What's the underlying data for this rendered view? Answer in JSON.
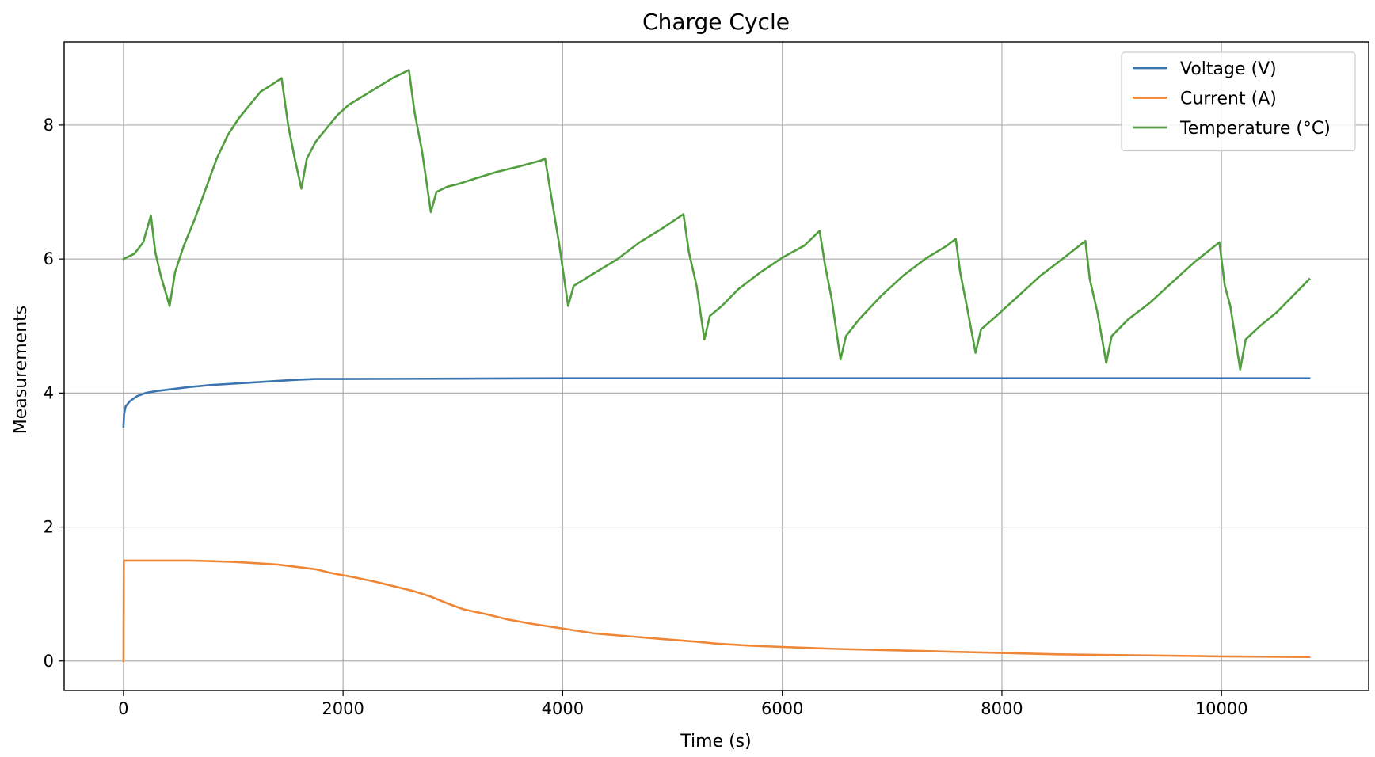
{
  "chart_data": {
    "type": "line",
    "title": "Charge Cycle",
    "xlabel": "Time (s)",
    "ylabel": "Measurements",
    "xlim": [
      -540,
      11340
    ],
    "ylim": [
      -0.44,
      9.24
    ],
    "xticks": [
      0,
      2000,
      4000,
      6000,
      8000,
      10000
    ],
    "yticks": [
      0,
      2,
      4,
      6,
      8
    ],
    "grid": true,
    "legend_position": "top-right",
    "series": [
      {
        "name": "Voltage (V)",
        "color": "#3b75af",
        "points": [
          [
            0,
            3.5
          ],
          [
            5,
            3.68
          ],
          [
            20,
            3.8
          ],
          [
            60,
            3.88
          ],
          [
            120,
            3.95
          ],
          [
            200,
            4.0
          ],
          [
            300,
            4.03
          ],
          [
            450,
            4.06
          ],
          [
            600,
            4.09
          ],
          [
            800,
            4.12
          ],
          [
            1000,
            4.14
          ],
          [
            1200,
            4.16
          ],
          [
            1400,
            4.18
          ],
          [
            1600,
            4.2
          ],
          [
            1750,
            4.21
          ],
          [
            2000,
            4.21
          ],
          [
            3000,
            4.215
          ],
          [
            4000,
            4.22
          ],
          [
            5000,
            4.22
          ],
          [
            6000,
            4.22
          ],
          [
            7000,
            4.22
          ],
          [
            8000,
            4.22
          ],
          [
            9000,
            4.22
          ],
          [
            10000,
            4.22
          ],
          [
            10800,
            4.22
          ]
        ]
      },
      {
        "name": "Current (A)",
        "color": "#ef8636",
        "points": [
          [
            0,
            0
          ],
          [
            3,
            1.5
          ],
          [
            200,
            1.5
          ],
          [
            400,
            1.5
          ],
          [
            600,
            1.5
          ],
          [
            800,
            1.49
          ],
          [
            1000,
            1.48
          ],
          [
            1200,
            1.46
          ],
          [
            1400,
            1.44
          ],
          [
            1600,
            1.4
          ],
          [
            1750,
            1.37
          ],
          [
            1900,
            1.31
          ],
          [
            2100,
            1.25
          ],
          [
            2300,
            1.18
          ],
          [
            2500,
            1.1
          ],
          [
            2650,
            1.04
          ],
          [
            2800,
            0.96
          ],
          [
            2950,
            0.86
          ],
          [
            3100,
            0.77
          ],
          [
            3300,
            0.7
          ],
          [
            3500,
            0.62
          ],
          [
            3700,
            0.56
          ],
          [
            3900,
            0.51
          ],
          [
            4100,
            0.46
          ],
          [
            4300,
            0.41
          ],
          [
            4600,
            0.37
          ],
          [
            4900,
            0.33
          ],
          [
            5200,
            0.29
          ],
          [
            5400,
            0.26
          ],
          [
            5700,
            0.23
          ],
          [
            6000,
            0.21
          ],
          [
            6500,
            0.18
          ],
          [
            7000,
            0.16
          ],
          [
            7500,
            0.14
          ],
          [
            8000,
            0.12
          ],
          [
            8500,
            0.1
          ],
          [
            9000,
            0.09
          ],
          [
            9500,
            0.08
          ],
          [
            10000,
            0.07
          ],
          [
            10800,
            0.06
          ]
        ]
      },
      {
        "name": "Temperature (°C)",
        "color": "#519e3e",
        "points": [
          [
            0,
            6.0
          ],
          [
            100,
            6.08
          ],
          [
            180,
            6.25
          ],
          [
            250,
            6.65
          ],
          [
            290,
            6.1
          ],
          [
            340,
            5.75
          ],
          [
            420,
            5.3
          ],
          [
            470,
            5.8
          ],
          [
            550,
            6.2
          ],
          [
            650,
            6.6
          ],
          [
            750,
            7.05
          ],
          [
            850,
            7.5
          ],
          [
            950,
            7.85
          ],
          [
            1050,
            8.1
          ],
          [
            1150,
            8.3
          ],
          [
            1250,
            8.5
          ],
          [
            1350,
            8.6
          ],
          [
            1440,
            8.7
          ],
          [
            1500,
            8.0
          ],
          [
            1560,
            7.5
          ],
          [
            1620,
            7.05
          ],
          [
            1670,
            7.5
          ],
          [
            1750,
            7.75
          ],
          [
            1850,
            7.95
          ],
          [
            1950,
            8.15
          ],
          [
            2050,
            8.3
          ],
          [
            2150,
            8.4
          ],
          [
            2250,
            8.5
          ],
          [
            2350,
            8.6
          ],
          [
            2450,
            8.7
          ],
          [
            2600,
            8.82
          ],
          [
            2650,
            8.2
          ],
          [
            2720,
            7.6
          ],
          [
            2800,
            6.7
          ],
          [
            2850,
            7.0
          ],
          [
            2950,
            7.08
          ],
          [
            3050,
            7.12
          ],
          [
            3200,
            7.2
          ],
          [
            3400,
            7.3
          ],
          [
            3600,
            7.38
          ],
          [
            3800,
            7.47
          ],
          [
            3840,
            7.5
          ],
          [
            3900,
            6.9
          ],
          [
            3970,
            6.2
          ],
          [
            4050,
            5.3
          ],
          [
            4100,
            5.6
          ],
          [
            4200,
            5.7
          ],
          [
            4300,
            5.8
          ],
          [
            4500,
            6.0
          ],
          [
            4700,
            6.25
          ],
          [
            4900,
            6.45
          ],
          [
            5100,
            6.67
          ],
          [
            5150,
            6.1
          ],
          [
            5220,
            5.6
          ],
          [
            5290,
            4.8
          ],
          [
            5340,
            5.15
          ],
          [
            5450,
            5.3
          ],
          [
            5600,
            5.55
          ],
          [
            5800,
            5.8
          ],
          [
            6000,
            6.02
          ],
          [
            6200,
            6.2
          ],
          [
            6340,
            6.42
          ],
          [
            6390,
            5.9
          ],
          [
            6450,
            5.4
          ],
          [
            6530,
            4.5
          ],
          [
            6580,
            4.85
          ],
          [
            6700,
            5.1
          ],
          [
            6900,
            5.45
          ],
          [
            7100,
            5.75
          ],
          [
            7300,
            6.0
          ],
          [
            7500,
            6.2
          ],
          [
            7580,
            6.3
          ],
          [
            7620,
            5.8
          ],
          [
            7680,
            5.3
          ],
          [
            7760,
            4.6
          ],
          [
            7810,
            4.95
          ],
          [
            7950,
            5.15
          ],
          [
            8150,
            5.45
          ],
          [
            8350,
            5.75
          ],
          [
            8550,
            6.0
          ],
          [
            8760,
            6.27
          ],
          [
            8800,
            5.7
          ],
          [
            8870,
            5.2
          ],
          [
            8950,
            4.45
          ],
          [
            9000,
            4.85
          ],
          [
            9150,
            5.1
          ],
          [
            9350,
            5.35
          ],
          [
            9550,
            5.65
          ],
          [
            9750,
            5.95
          ],
          [
            9980,
            6.25
          ],
          [
            10030,
            5.6
          ],
          [
            10080,
            5.3
          ],
          [
            10170,
            4.35
          ],
          [
            10220,
            4.8
          ],
          [
            10350,
            5.0
          ],
          [
            10500,
            5.2
          ],
          [
            10650,
            5.45
          ],
          [
            10800,
            5.7
          ]
        ]
      }
    ]
  }
}
